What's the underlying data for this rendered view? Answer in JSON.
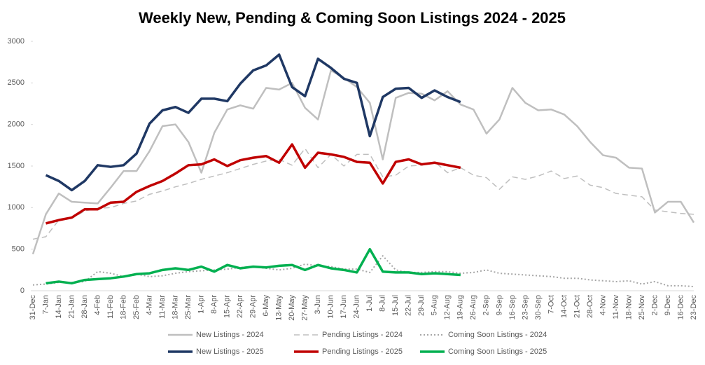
{
  "chart_data": {
    "type": "line",
    "title": "Weekly New, Pending & Coming Soon Listings 2024 - 2025",
    "categories": [
      "31-Dec",
      "7-Jan",
      "14-Jan",
      "21-Jan",
      "28-Jan",
      "4-Feb",
      "11-Feb",
      "18-Feb",
      "25-Feb",
      "4-Mar",
      "11-Mar",
      "18-Mar",
      "25-Mar",
      "1-Apr",
      "8-Apr",
      "15-Apr",
      "22-Apr",
      "29-Apr",
      "6-May",
      "13-May",
      "20-May",
      "27-May",
      "3-Jun",
      "10-Jun",
      "17-Jun",
      "24-Jun",
      "1-Jul",
      "8-Jul",
      "15-Jul",
      "22-Jul",
      "29-Jul",
      "5-Aug",
      "12-Aug",
      "19-Aug",
      "26-Aug",
      "2-Sep",
      "9-Sep",
      "16-Sep",
      "23-Sep",
      "30-Sep",
      "7-Oct",
      "14-Oct",
      "21-Oct",
      "28-Oct",
      "4-Nov",
      "11-Nov",
      "18-Nov",
      "25-Nov",
      "2-Dec",
      "9-Dec",
      "16-Dec",
      "23-Dec"
    ],
    "ylim": [
      0,
      3000
    ],
    "yticks": [
      0,
      500,
      1000,
      1500,
      2000,
      2500,
      3000
    ],
    "series": [
      {
        "name": "New Listings - 2024",
        "color": "#bfbfbf",
        "style": "solid",
        "width": 2.5,
        "values": [
          440,
          920,
          1170,
          1070,
          1060,
          1050,
          1240,
          1440,
          1440,
          1680,
          1980,
          2000,
          1790,
          1420,
          1900,
          2180,
          2230,
          2190,
          2440,
          2420,
          2500,
          2200,
          2060,
          2650,
          2560,
          2450,
          2260,
          1580,
          2320,
          2380,
          2370,
          2290,
          2400,
          2240,
          2180,
          1890,
          2060,
          2440,
          2260,
          2170,
          2180,
          2120,
          1980,
          1790,
          1630,
          1600,
          1480,
          1470,
          940,
          1070,
          1070,
          820
        ]
      },
      {
        "name": "Pending Listings - 2024",
        "color": "#bfbfbf",
        "style": "dashed",
        "width": 1.5,
        "values": [
          620,
          650,
          850,
          870,
          960,
          990,
          1000,
          1050,
          1080,
          1160,
          1200,
          1250,
          1290,
          1340,
          1380,
          1420,
          1470,
          1520,
          1560,
          1580,
          1510,
          1710,
          1480,
          1640,
          1500,
          1640,
          1640,
          1370,
          1390,
          1500,
          1510,
          1550,
          1420,
          1480,
          1390,
          1360,
          1220,
          1370,
          1340,
          1380,
          1440,
          1350,
          1380,
          1270,
          1240,
          1170,
          1150,
          1130,
          970,
          950,
          930,
          920
        ]
      },
      {
        "name": "Coming Soon Listings - 2024",
        "color": "#a6a6a6",
        "style": "dotted",
        "width": 2,
        "values": [
          70,
          80,
          100,
          100,
          110,
          230,
          210,
          170,
          200,
          170,
          180,
          210,
          230,
          240,
          250,
          260,
          280,
          290,
          270,
          250,
          270,
          320,
          300,
          290,
          260,
          260,
          220,
          420,
          250,
          220,
          220,
          230,
          230,
          210,
          220,
          250,
          210,
          200,
          190,
          180,
          170,
          150,
          150,
          130,
          120,
          110,
          120,
          80,
          110,
          60,
          60,
          50
        ]
      },
      {
        "name": "New Listings - 2025",
        "color": "#1f3864",
        "style": "solid",
        "width": 3.5,
        "values": [
          null,
          1390,
          1320,
          1210,
          1320,
          1510,
          1490,
          1510,
          1650,
          2010,
          2170,
          2210,
          2140,
          2310,
          2310,
          2280,
          2490,
          2650,
          2710,
          2840,
          2450,
          2340,
          2790,
          2680,
          2550,
          2500,
          1860,
          2330,
          2430,
          2440,
          2320,
          2410,
          2330,
          2270,
          null,
          null,
          null,
          null,
          null,
          null,
          null,
          null,
          null,
          null,
          null,
          null,
          null,
          null,
          null,
          null,
          null,
          null
        ]
      },
      {
        "name": "Pending Listings - 2025",
        "color": "#c00000",
        "style": "solid",
        "width": 3.5,
        "values": [
          null,
          810,
          850,
          880,
          980,
          980,
          1060,
          1070,
          1190,
          1260,
          1320,
          1410,
          1510,
          1520,
          1580,
          1500,
          1570,
          1600,
          1620,
          1540,
          1760,
          1480,
          1660,
          1640,
          1610,
          1550,
          1540,
          1290,
          1550,
          1580,
          1520,
          1540,
          1510,
          1480,
          null,
          null,
          null,
          null,
          null,
          null,
          null,
          null,
          null,
          null,
          null,
          null,
          null,
          null,
          null,
          null,
          null,
          null
        ]
      },
      {
        "name": "Coming Soon Listings - 2025",
        "color": "#00b050",
        "style": "solid",
        "width": 3.5,
        "values": [
          null,
          90,
          110,
          90,
          130,
          140,
          150,
          170,
          200,
          210,
          250,
          270,
          250,
          290,
          230,
          310,
          270,
          290,
          280,
          300,
          310,
          250,
          310,
          270,
          250,
          220,
          500,
          230,
          220,
          220,
          200,
          210,
          200,
          190,
          null,
          null,
          null,
          null,
          null,
          null,
          null,
          null,
          null,
          null,
          null,
          null,
          null,
          null,
          null,
          null,
          null,
          null
        ]
      }
    ]
  }
}
